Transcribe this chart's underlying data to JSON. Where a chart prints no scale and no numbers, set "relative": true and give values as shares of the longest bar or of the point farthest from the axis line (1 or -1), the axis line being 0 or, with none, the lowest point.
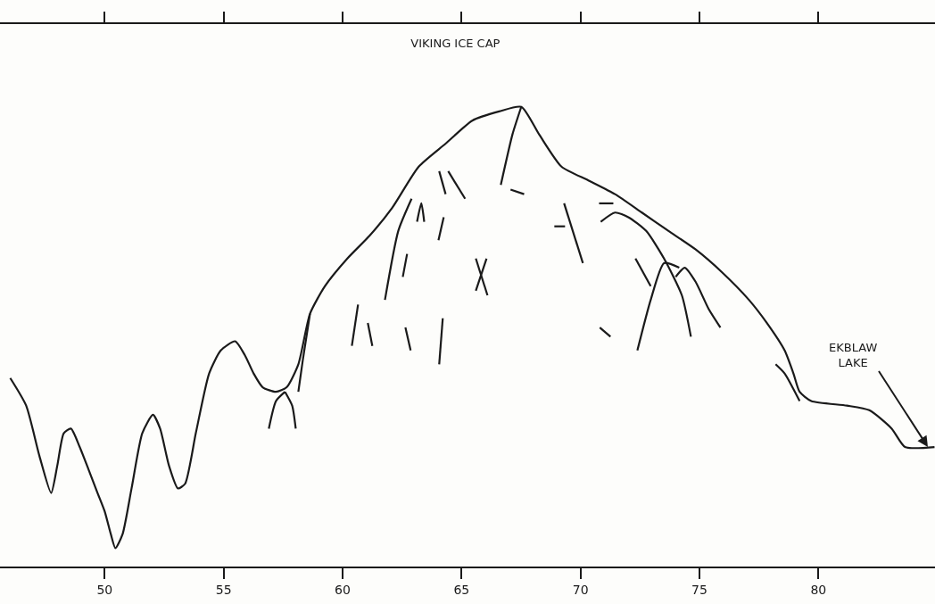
{
  "chart_data": {
    "type": "line",
    "title": "VIKING ICE CAP",
    "relative": true,
    "marker": "none",
    "line_style": "solid",
    "xlim": [
      45.6,
      84.9
    ],
    "xticks": [
      50,
      55,
      60,
      65,
      70,
      75,
      80
    ],
    "tick_labels": "x",
    "annotations": [
      {
        "text": "EKBLAW\nLAKE",
        "x": 84.6,
        "y": 0.26
      }
    ],
    "series": [
      {
        "color": "#1a1a1a",
        "x": [
          46.03,
          46.7,
          47.26,
          47.75,
          48.01,
          48.28,
          48.58,
          48.95,
          49.33,
          49.7,
          50.0,
          50.26,
          50.45,
          50.75,
          51.13,
          51.58,
          52.03,
          52.33,
          52.7,
          53.08,
          53.38,
          53.83,
          54.39,
          54.88,
          55.48,
          55.89,
          56.26,
          56.64,
          57.2,
          57.65,
          58.14,
          58.63,
          59.26,
          60.2,
          61.14,
          62.08,
          63.2,
          64.33,
          65.45,
          66.58,
          67.51,
          68.26,
          69.2,
          70.33,
          71.45,
          72.58,
          73.7,
          74.83,
          75.95,
          77.08,
          77.83,
          78.58,
          78.95,
          79.21,
          79.7,
          81.2,
          82.14,
          83.08,
          83.64,
          84.88
        ],
        "values": [
          0.41,
          0.35,
          0.24,
          0.16,
          0.22,
          0.29,
          0.3,
          0.26,
          0.21,
          0.16,
          0.12,
          0.07,
          0.04,
          0.07,
          0.17,
          0.29,
          0.33,
          0.3,
          0.22,
          0.17,
          0.18,
          0.29,
          0.42,
          0.47,
          0.49,
          0.46,
          0.42,
          0.39,
          0.38,
          0.39,
          0.44,
          0.55,
          0.61,
          0.67,
          0.72,
          0.78,
          0.87,
          0.92,
          0.97,
          0.99,
          1.0,
          0.94,
          0.87,
          0.84,
          0.81,
          0.77,
          0.73,
          0.69,
          0.64,
          0.58,
          0.53,
          0.47,
          0.42,
          0.38,
          0.36,
          0.35,
          0.34,
          0.3,
          0.26,
          0.26
        ]
      },
      {
        "color": "#1a1a1a",
        "x": [
          56.9,
          57.2,
          57.58,
          null,
          57.58,
          57.88,
          58.03,
          null,
          58.63,
          58.33,
          58.14,
          null,
          61.78,
          62.34,
          62.9,
          null,
          60.39,
          60.65,
          null,
          61.06,
          61.25,
          null,
          62.64,
          62.86,
          null,
          64.06,
          64.21,
          null,
          62.53,
          62.71,
          null,
          64.03,
          64.25,
          null,
          63.13,
          63.31,
          63.43,
          null,
          64.06,
          64.33,
          null,
          64.44,
          65.15,
          null,
          65.6,
          66.09,
          null,
          66.05,
          65.6,
          null,
          66.65,
          67.14,
          67.51,
          null,
          67.06,
          67.63,
          null,
          68.9,
          69.35,
          null,
          69.31,
          70.1,
          null,
          70.81,
          71.26,
          null,
          70.85,
          71.45,
          72.01,
          72.76,
          73.51,
          74.26,
          74.64,
          null,
          72.31,
          72.95,
          null,
          72.39,
          72.95,
          73.51,
          74.15,
          null,
          74.0,
          74.38,
          74.83,
          75.39,
          75.88,
          null,
          78.2,
          78.58,
          79.21,
          null,
          70.78,
          71.38
        ],
        "values": [
          0.3,
          0.36,
          0.38,
          null,
          0.38,
          0.35,
          0.3,
          null,
          0.55,
          0.45,
          0.38,
          null,
          0.58,
          0.73,
          0.8,
          null,
          0.48,
          0.57,
          null,
          0.53,
          0.48,
          null,
          0.52,
          0.47,
          null,
          0.44,
          0.54,
          null,
          0.63,
          0.68,
          null,
          0.71,
          0.76,
          null,
          0.75,
          0.79,
          0.75,
          null,
          0.86,
          0.81,
          null,
          0.86,
          0.8,
          null,
          0.67,
          0.59,
          null,
          0.67,
          0.6,
          null,
          0.83,
          0.94,
          1.0,
          null,
          0.82,
          0.81,
          null,
          0.74,
          0.74,
          null,
          0.79,
          0.66,
          null,
          0.52,
          0.5,
          null,
          0.75,
          0.77,
          0.76,
          0.73,
          0.67,
          0.59,
          0.5,
          null,
          0.67,
          0.61,
          null,
          0.47,
          0.58,
          0.66,
          0.65,
          null,
          0.63,
          0.65,
          0.62,
          0.56,
          0.52,
          null,
          0.44,
          0.42,
          0.36,
          null,
          0.79,
          0.79
        ]
      }
    ]
  }
}
